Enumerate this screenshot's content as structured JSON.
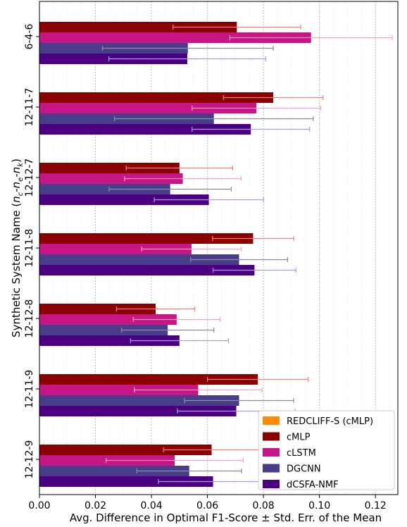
{
  "chart_data": {
    "type": "bar",
    "orientation": "horizontal",
    "categories": [
      "6-4-6",
      "12-11-7",
      "12-12-7",
      "12-11-8",
      "12-12-8",
      "12-11-9",
      "12-12-9"
    ],
    "series": [
      {
        "name": "REDCLIFF-S (cMLP)",
        "color": "#ff8c00",
        "values": [
          0,
          0,
          0,
          0,
          0,
          0,
          0
        ],
        "errors": [
          0,
          0,
          0,
          0,
          0,
          0,
          0
        ],
        "error_color": "#ff8c00"
      },
      {
        "name": "cMLP",
        "color": "#8b0000",
        "values": [
          0.0705,
          0.0835,
          0.05,
          0.0763,
          0.0415,
          0.078,
          0.0615
        ],
        "errors": [
          0.0228,
          0.0178,
          0.019,
          0.0145,
          0.014,
          0.018,
          0.0172
        ],
        "error_color": "#f08080"
      },
      {
        "name": "cLSTM",
        "color": "#c71585",
        "values": [
          0.097,
          0.0775,
          0.0512,
          0.0543,
          0.049,
          0.0567,
          0.0483
        ],
        "errors": [
          0.029,
          0.023,
          0.0208,
          0.0178,
          0.0155,
          0.0228,
          0.0245
        ],
        "error_color": "#ff9ec8"
      },
      {
        "name": "DGCNN",
        "color": "#483d8b",
        "values": [
          0.053,
          0.0623,
          0.0467,
          0.0713,
          0.0458,
          0.0713,
          0.0535
        ],
        "errors": [
          0.0305,
          0.0355,
          0.0218,
          0.0173,
          0.0165,
          0.0195,
          0.0187
        ],
        "error_color": "#8c8c9a"
      },
      {
        "name": "dCSFA-NMF",
        "color": "#4b0082",
        "values": [
          0.0528,
          0.0755,
          0.0605,
          0.0768,
          0.05,
          0.0703,
          0.062
        ],
        "errors": [
          0.028,
          0.021,
          0.0195,
          0.0148,
          0.0175,
          0.021,
          0.0195
        ],
        "error_color": "#a79be0"
      }
    ],
    "xlim": [
      0,
      0.128
    ],
    "xticks": [
      "0.00",
      "0.02",
      "0.04",
      "0.06",
      "0.08",
      "0.10",
      "0.12"
    ],
    "xlabel": "Avg. Difference in Optimal F1-Score ± Std. Err. of the Mean",
    "ylabel": "Synthetic System Name (nc-ne-nk)",
    "ylabel_parts": {
      "prefix": "Synthetic System Name (",
      "n": "n",
      "c": "c",
      "e": "e",
      "k": "k",
      "dash": "-",
      "suffix": ")"
    },
    "grid": true,
    "legend_position": "lower-right"
  }
}
